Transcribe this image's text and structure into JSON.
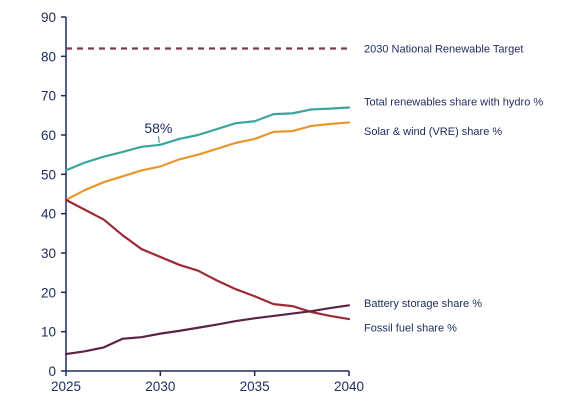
{
  "chart_data": {
    "type": "line",
    "title": "",
    "xlabel": "",
    "ylabel": "",
    "xlim": [
      2025,
      2040
    ],
    "ylim": [
      0,
      90
    ],
    "x_ticks": [
      2025,
      2030,
      2035,
      2040
    ],
    "y_ticks": [
      0,
      10,
      20,
      30,
      40,
      50,
      60,
      70,
      80,
      90
    ],
    "grid": false,
    "legend": "inline-right",
    "x": [
      2025,
      2026,
      2027,
      2028,
      2029,
      2030,
      2031,
      2032,
      2033,
      2034,
      2035,
      2036,
      2037,
      2038,
      2039,
      2040
    ],
    "series": [
      {
        "name": "Total renewables share with hydro %",
        "color": "#3ba59c",
        "style": "solid",
        "values": [
          51,
          53,
          54.5,
          55.7,
          57,
          57.5,
          59,
          60,
          61.5,
          63,
          63.5,
          65.3,
          65.5,
          66.5,
          66.7,
          67
        ]
      },
      {
        "name": "Solar & wind (VRE) share %",
        "color": "#e8972f",
        "style": "solid",
        "values": [
          43.5,
          46,
          48,
          49.5,
          51,
          52,
          53.8,
          55,
          56.5,
          58,
          59,
          60.8,
          61,
          62.3,
          62.8,
          63.2
        ]
      },
      {
        "name": "Fossil fuel share %",
        "color": "#9b2b35",
        "style": "solid",
        "values": [
          43.5,
          41,
          38.5,
          34.5,
          31,
          29,
          27,
          25.5,
          23,
          20.8,
          19,
          17,
          16.5,
          15,
          14,
          13.2
        ]
      },
      {
        "name": "Battery storage share %",
        "color": "#5c2348",
        "style": "solid",
        "values": [
          4.3,
          5,
          6,
          8.2,
          8.6,
          9.5,
          10.2,
          11,
          11.8,
          12.7,
          13.4,
          14,
          14.6,
          15.2,
          16,
          16.7
        ]
      },
      {
        "name": "2030 National Renewable Target",
        "color": "#7b3a5b",
        "style": "dashed",
        "values": [
          82,
          82,
          82,
          82,
          82,
          82,
          82,
          82,
          82,
          82,
          82,
          82,
          82,
          82,
          82,
          82
        ]
      }
    ],
    "annotations": [
      {
        "text": "58%",
        "x": 2030,
        "y": 57.5,
        "series": "Total renewables share with hydro %"
      }
    ]
  }
}
